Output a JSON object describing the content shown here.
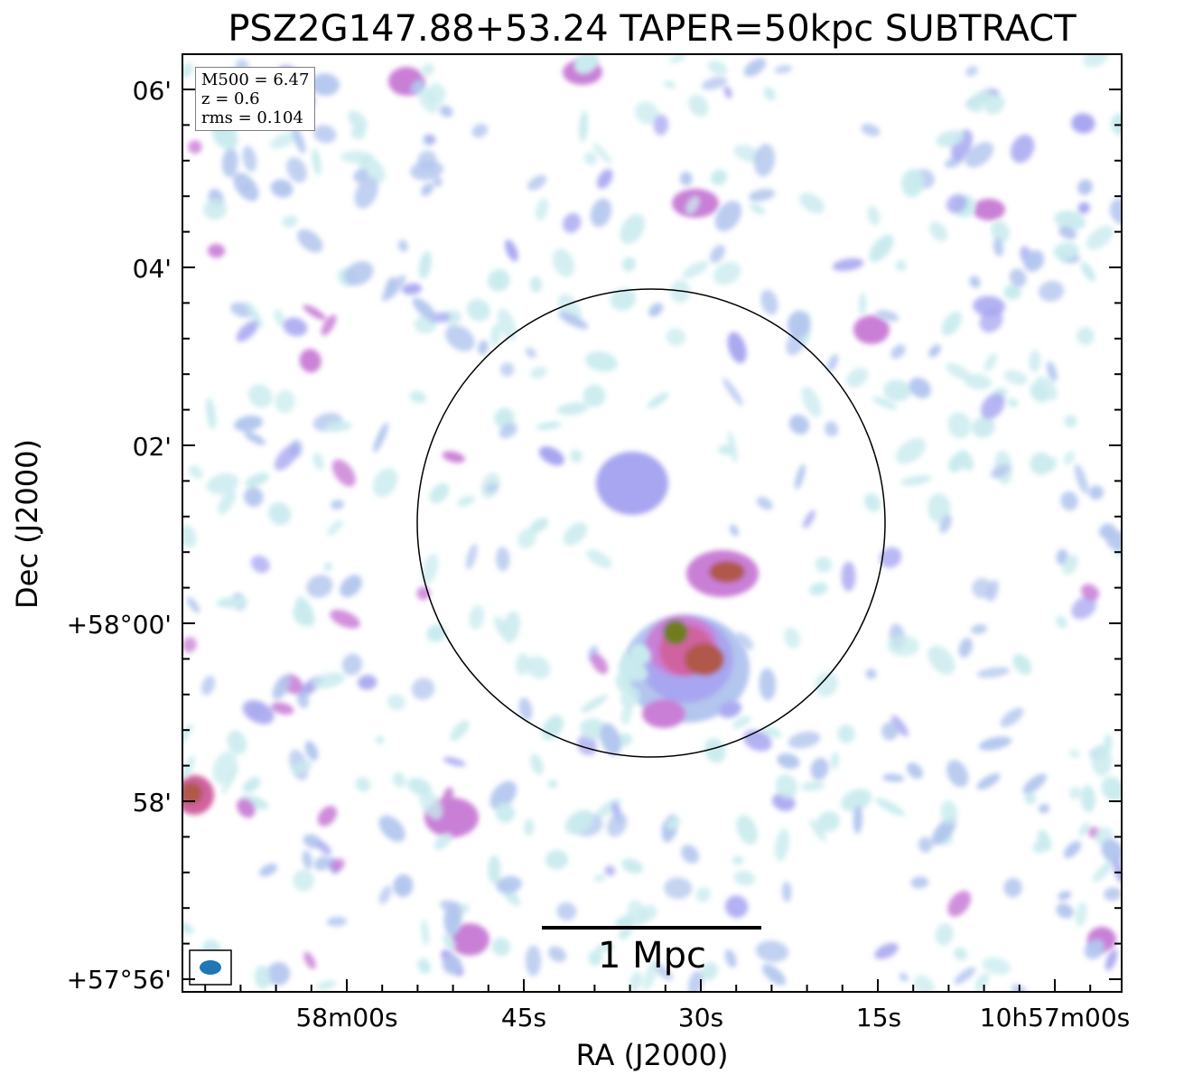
{
  "title": "PSZ2G147.88+53.24 TAPER=50kpc SUBTRACT",
  "axes": {
    "x_title": "RA (J2000)",
    "y_title": "Dec (J2000)",
    "x_ticks": [
      "58m00s",
      "45s",
      "30s",
      "15s",
      "10h57m00s"
    ],
    "y_ticks": [
      "06'",
      "04'",
      "02'",
      "+58°00'",
      "58'",
      "+57°56'"
    ]
  },
  "info": {
    "m500": "M500 = 6.47",
    "z": "z = 0.6",
    "rms": "rms = 0.104"
  },
  "scalebar": {
    "label": "1 Mpc"
  },
  "overlay": {
    "type": "circle",
    "color": "#000000"
  },
  "beam": {
    "color": "#1f77b4"
  },
  "colormap": [
    "#c9ebee",
    "#b3c6ee",
    "#a8a6f0",
    "#c97fd6",
    "#d0629f",
    "#b0584a",
    "#6f7d1e"
  ]
}
